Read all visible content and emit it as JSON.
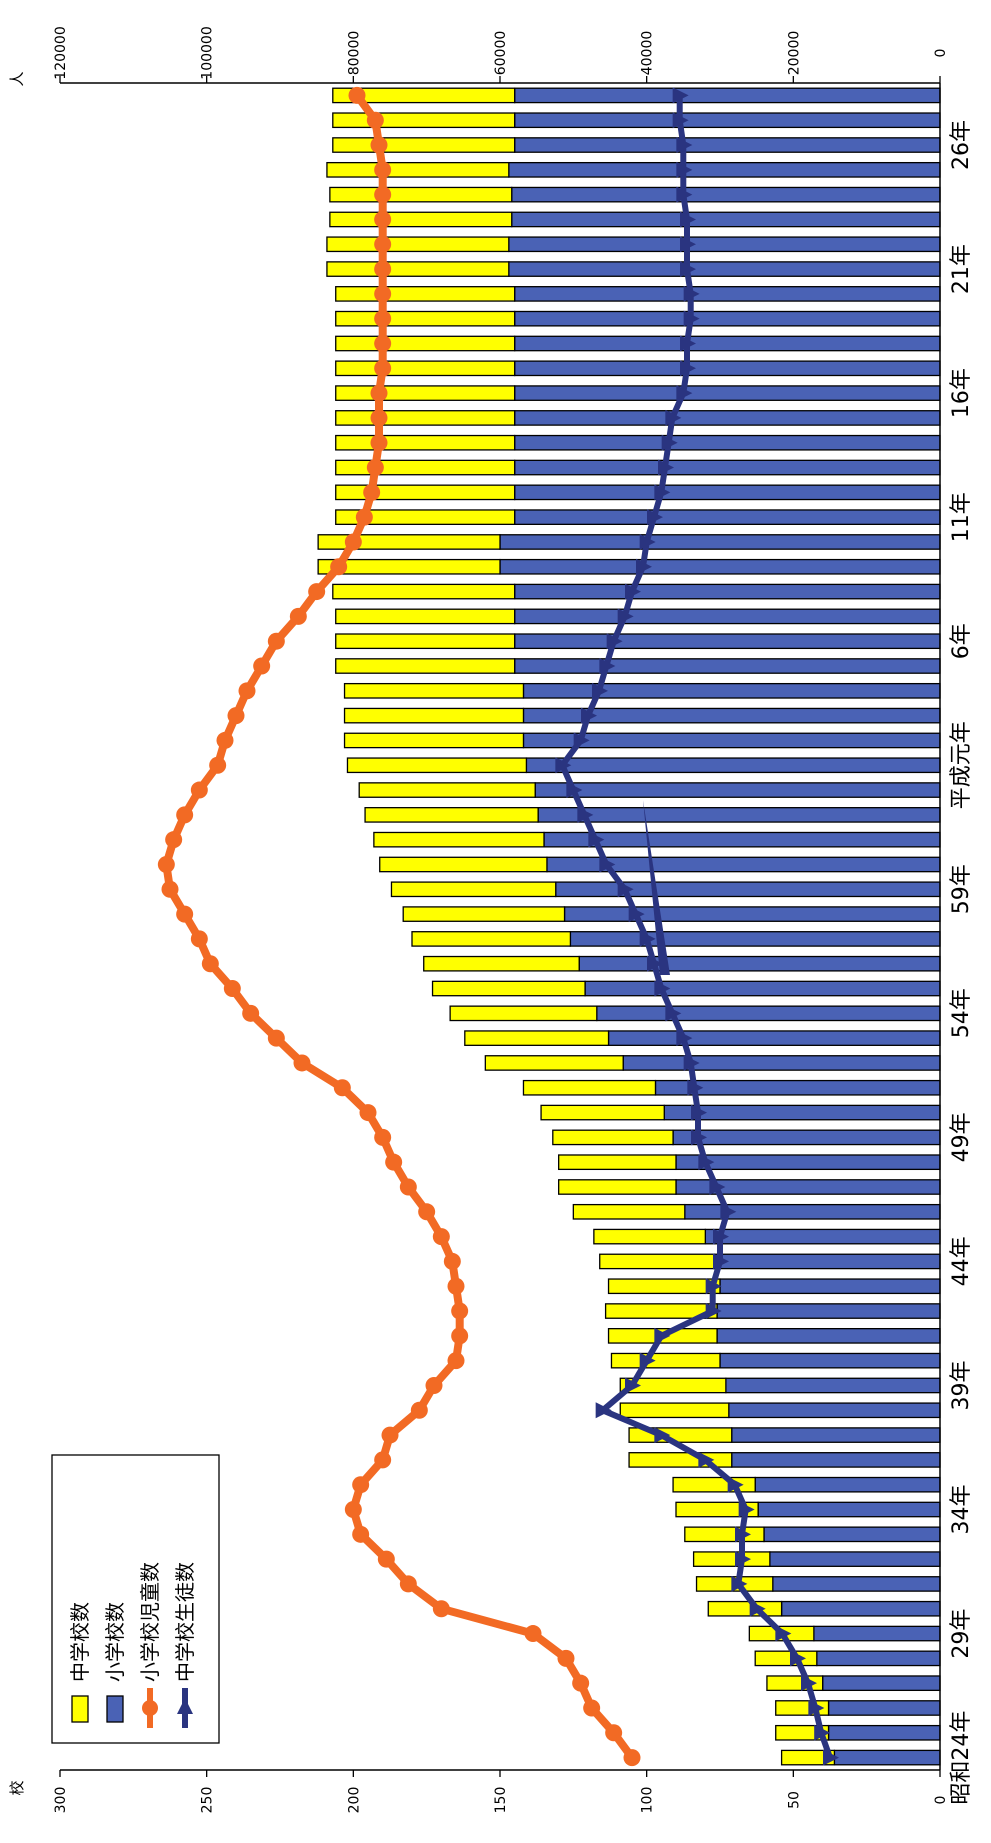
{
  "chart_data": {
    "type": "bar",
    "orientation": "rotated-90-clockwise",
    "stacked": true,
    "units": {
      "left": "校",
      "right": "人"
    },
    "left_axis": {
      "ylim": [
        0,
        300
      ],
      "ticks": [
        "0",
        "50",
        "100",
        "150",
        "200",
        "250",
        "300"
      ]
    },
    "right_axis": {
      "ylim": [
        0,
        120000
      ],
      "ticks": [
        "0",
        "20000",
        "40000",
        "60000",
        "80000",
        "100000",
        "120000"
      ]
    },
    "category_labels": [
      "昭和24年",
      "29年",
      "34年",
      "39年",
      "44年",
      "49年",
      "54年",
      "59年",
      "平成元年",
      "6年",
      "11年",
      "16年",
      "21年",
      "26年"
    ],
    "categories": [
      "昭和24年",
      "25年",
      "26年",
      "27年",
      "28年",
      "29年",
      "30年",
      "31年",
      "32年",
      "33年",
      "34年",
      "35年",
      "36年",
      "37年",
      "38年",
      "39年",
      "40年",
      "41年",
      "42年",
      "43年",
      "44年",
      "45年",
      "46年",
      "47年",
      "48年",
      "49年",
      "50年",
      "51年",
      "52年",
      "53年",
      "54年",
      "55年",
      "56年",
      "57年",
      "58年",
      "59年",
      "60年",
      "61年",
      "62年",
      "63年",
      "平成元年",
      "2年",
      "3年",
      "4年",
      "5年",
      "6年",
      "7年",
      "8年",
      "9年",
      "10年",
      "11年",
      "12年",
      "13年",
      "14年",
      "15年",
      "16年",
      "17年",
      "18年",
      "19年",
      "20年",
      "21年",
      "22年",
      "23年",
      "24年",
      "25年",
      "26年",
      "27年",
      "28年"
    ],
    "series": [
      {
        "name": "中学校数",
        "type": "bar",
        "axis": "left",
        "color": "#ffff00",
        "values": [
          18,
          18,
          18,
          19,
          21,
          22,
          25,
          26,
          26,
          27,
          28,
          28,
          35,
          35,
          37,
          36,
          37,
          37,
          38,
          38,
          39,
          38,
          38,
          40,
          40,
          41,
          42,
          45,
          47,
          49,
          50,
          52,
          53,
          54,
          55,
          56,
          57,
          58,
          59,
          60,
          61,
          61,
          61,
          61,
          61,
          61,
          61,
          62,
          62,
          62,
          61,
          61,
          61,
          61,
          61,
          61,
          61,
          61,
          61,
          61,
          62,
          62,
          62,
          62,
          62,
          62,
          62,
          62
        ]
      },
      {
        "name": "小学校数",
        "type": "bar",
        "axis": "left",
        "color": "#4a62b5",
        "values": [
          36,
          38,
          38,
          40,
          42,
          43,
          54,
          57,
          58,
          60,
          62,
          63,
          71,
          71,
          72,
          73,
          75,
          76,
          76,
          75,
          77,
          80,
          87,
          90,
          90,
          91,
          94,
          97,
          108,
          113,
          117,
          121,
          123,
          126,
          128,
          131,
          134,
          135,
          137,
          138,
          141,
          142,
          142,
          142,
          145,
          145,
          145,
          145,
          150,
          150,
          145,
          145,
          145,
          145,
          145,
          145,
          145,
          145,
          145,
          145,
          147,
          147,
          146,
          146,
          147,
          145,
          145,
          145
        ]
      },
      {
        "name": "小学校児童数",
        "type": "line",
        "axis": "right",
        "color": "#f26a24",
        "values": [
          42000,
          44500,
          47500,
          49000,
          51000,
          55500,
          68000,
          72500,
          75500,
          79000,
          80000,
          79000,
          76000,
          75000,
          71000,
          69000,
          66000,
          65500,
          65500,
          66000,
          66500,
          68000,
          70000,
          72500,
          74500,
          76000,
          78000,
          81500,
          87000,
          90500,
          94000,
          96500,
          99500,
          101000,
          103000,
          105000,
          105500,
          104500,
          103000,
          101000,
          98500,
          97500,
          96000,
          94500,
          92500,
          90500,
          87500,
          85000,
          82000,
          80000,
          78500,
          77500,
          77000,
          76500,
          76500,
          76500,
          76000,
          76000,
          76000,
          76000,
          76000,
          76000,
          76000,
          76000,
          76000,
          76500,
          77000,
          79500
        ]
      },
      {
        "name": "中学校生徒数",
        "type": "line",
        "axis": "right",
        "color": "#2a3480",
        "values": [
          15000,
          16200,
          17000,
          18000,
          19500,
          21500,
          25000,
          27500,
          27000,
          27000,
          26500,
          28000,
          32000,
          38000,
          46000,
          42000,
          40000,
          38000,
          31000,
          31000,
          30000,
          30000,
          29000,
          30500,
          32000,
          33000,
          33000,
          33500,
          34000,
          35000,
          36500,
          38000,
          39000,
          40000,
          41500,
          43000,
          45500,
          47000,
          48500,
          50000,
          51500,
          49000,
          48000,
          46500,
          45500,
          44500,
          43000,
          42000,
          40500,
          40000,
          39000,
          38000,
          37500,
          37000,
          36500,
          35000,
          34500,
          34500,
          34000,
          34000,
          34500,
          34500,
          34500,
          35000,
          35000,
          35000,
          35500,
          35500
        ]
      }
    ],
    "grid": false,
    "legend": {
      "position": "top-left"
    }
  }
}
